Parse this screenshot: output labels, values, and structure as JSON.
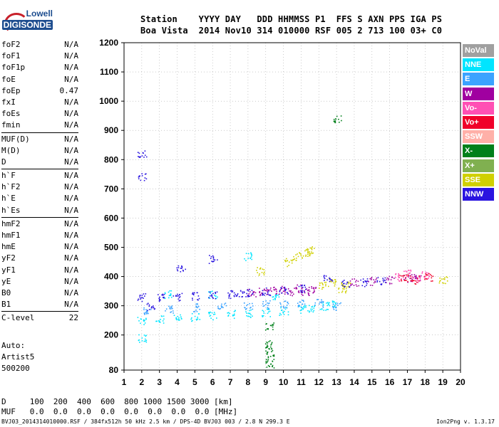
{
  "logo": {
    "line1": "Lowell",
    "line2": "DIGISONDE"
  },
  "header": {
    "row1": "Station    YYYY DAY   DDD HHMMSS P1  FFS S AXN PPS IGA PS",
    "row2": "Boa Vista  2014 Nov10 314 010000 RSF 005 2 713 100 03+ C0"
  },
  "params": [
    [
      {
        "label": "foF2",
        "value": "N/A"
      },
      {
        "label": "foF1",
        "value": "N/A"
      },
      {
        "label": "foF1p",
        "value": "N/A"
      },
      {
        "label": "foE",
        "value": "N/A"
      },
      {
        "label": "foEp",
        "value": "0.47"
      },
      {
        "label": "fxI",
        "value": "N/A"
      },
      {
        "label": "foEs",
        "value": "N/A"
      },
      {
        "label": "fmin",
        "value": "N/A"
      }
    ],
    [
      {
        "label": "MUF(D)",
        "value": "N/A"
      },
      {
        "label": "M(D)",
        "value": "N/A"
      },
      {
        "label": "D",
        "value": "N/A"
      }
    ],
    [
      {
        "label": "h`F",
        "value": "N/A"
      },
      {
        "label": "h`F2",
        "value": "N/A"
      },
      {
        "label": "h`E",
        "value": "N/A"
      },
      {
        "label": "h`Es",
        "value": "N/A"
      }
    ],
    [
      {
        "label": "hmF2",
        "value": "N/A"
      },
      {
        "label": "hmF1",
        "value": "N/A"
      },
      {
        "label": "hmE",
        "value": "N/A"
      },
      {
        "label": "yF2",
        "value": "N/A"
      },
      {
        "label": "yF1",
        "value": "N/A"
      },
      {
        "label": "yE",
        "value": "N/A"
      },
      {
        "label": "B0",
        "value": "N/A"
      },
      {
        "label": "B1",
        "value": "N/A"
      }
    ],
    [
      {
        "label": "C-level",
        "value": "22"
      }
    ]
  ],
  "notes": [
    "Auto:",
    "Artist5",
    "500200"
  ],
  "legend": [
    {
      "label": "NoVal",
      "color": "#a0a0a0"
    },
    {
      "label": "NNE",
      "color": "#00e5ff"
    },
    {
      "label": "E",
      "color": "#3ba3ff"
    },
    {
      "label": "W",
      "color": "#a000a0"
    },
    {
      "label": "Vo-",
      "color": "#ff50b4"
    },
    {
      "label": "Vo+",
      "color": "#f0002a"
    },
    {
      "label": "SSW",
      "color": "#ffb0a8"
    },
    {
      "label": "X-",
      "color": "#00801a"
    },
    {
      "label": "X+",
      "color": "#80b050"
    },
    {
      "label": "SSE",
      "color": "#d0d000"
    },
    {
      "label": "NNW",
      "color": "#2a14e0"
    }
  ],
  "chart_data": {
    "type": "scatter",
    "title": "",
    "xlabel": "",
    "ylabel": "",
    "xlim": [
      1,
      20
    ],
    "ylim": [
      80,
      1200
    ],
    "x_ticks": [
      1,
      2,
      3,
      4,
      5,
      6,
      7,
      8,
      9,
      10,
      11,
      12,
      13,
      14,
      15,
      16,
      17,
      18,
      19,
      20
    ],
    "y_ticks": [
      80,
      200,
      300,
      400,
      500,
      600,
      700,
      800,
      900,
      1000,
      1100,
      1200
    ],
    "grid": true,
    "series": [
      {
        "name": "NNE",
        "color": "#00e5ff",
        "points": [
          [
            2.0,
            250
          ],
          [
            3,
            255
          ],
          [
            4,
            260
          ],
          [
            5,
            263
          ],
          [
            6,
            267
          ],
          [
            7,
            272
          ],
          [
            8,
            275
          ],
          [
            9,
            278
          ],
          [
            10,
            283
          ],
          [
            11,
            288
          ],
          [
            11.5,
            292
          ],
          [
            12.3,
            300
          ],
          [
            12.7,
            310
          ],
          [
            2.0,
            190
          ],
          [
            3.5,
            340
          ],
          [
            6,
            340
          ],
          [
            8,
            470
          ],
          [
            9.5,
            330
          ]
        ]
      },
      {
        "name": "E",
        "color": "#3ba3ff",
        "points": [
          [
            2.3,
            285
          ],
          [
            3.5,
            290
          ],
          [
            5,
            295
          ],
          [
            6.5,
            298
          ],
          [
            8,
            302
          ],
          [
            9,
            305
          ],
          [
            10,
            308
          ],
          [
            11,
            310
          ],
          [
            12,
            310
          ],
          [
            13,
            300
          ]
        ]
      },
      {
        "name": "W",
        "color": "#a000a0",
        "points": [
          [
            8.2,
            345
          ],
          [
            8.8,
            350
          ],
          [
            9.3,
            355
          ],
          [
            9.8,
            355
          ],
          [
            10.3,
            350
          ],
          [
            10.8,
            360
          ],
          [
            11.2,
            350
          ],
          [
            11.6,
            355
          ],
          [
            14,
            380
          ],
          [
            15,
            385
          ],
          [
            16,
            390
          ],
          [
            17,
            395
          ],
          [
            17.5,
            400
          ]
        ]
      },
      {
        "name": "Vo-",
        "color": "#ff50b4",
        "points": [
          [
            16.5,
            400
          ],
          [
            17,
            410
          ],
          [
            17.5,
            395
          ],
          [
            18,
            405
          ]
        ]
      },
      {
        "name": "Vo+",
        "color": "#f0002a",
        "points": [
          [
            16.8,
            395
          ],
          [
            17.4,
            390
          ],
          [
            18.2,
            400
          ]
        ]
      },
      {
        "name": "X-",
        "color": "#00801a",
        "points": [
          [
            9.2,
            100
          ],
          [
            9.2,
            120
          ],
          [
            9.2,
            150
          ],
          [
            9.2,
            170
          ],
          [
            9.2,
            230
          ],
          [
            13,
            940
          ]
        ]
      },
      {
        "name": "SSE",
        "color": "#d0d000",
        "points": [
          [
            10.3,
            450
          ],
          [
            10.8,
            470
          ],
          [
            11.3,
            480
          ],
          [
            11.5,
            490
          ],
          [
            12.2,
            370
          ],
          [
            12.7,
            380
          ],
          [
            13.3,
            360
          ],
          [
            13.5,
            370
          ],
          [
            19,
            390
          ],
          [
            8.7,
            420
          ]
        ]
      },
      {
        "name": "NNW",
        "color": "#2a14e0",
        "points": [
          [
            2.0,
            330
          ],
          [
            3,
            330
          ],
          [
            4,
            332
          ],
          [
            5,
            335
          ],
          [
            6,
            338
          ],
          [
            7,
            340
          ],
          [
            7.5,
            345
          ],
          [
            8,
            345
          ],
          [
            9,
            350
          ],
          [
            10,
            355
          ],
          [
            11,
            360
          ],
          [
            2.0,
            740
          ],
          [
            2.0,
            820
          ],
          [
            2.5,
            300
          ],
          [
            4.2,
            430
          ],
          [
            6,
            460
          ],
          [
            12.5,
            395
          ],
          [
            13.5,
            375
          ],
          [
            14.5,
            380
          ],
          [
            15.5,
            385
          ]
        ]
      }
    ]
  },
  "bottom_table": {
    "row1": "D     100  200  400  600  800 1000 1500 3000 [km]",
    "row2": "MUF   0.0  0.0  0.0  0.0  0.0  0.0  0.0  0.0 [MHz]"
  },
  "footer": "BVJ03_2014314010000.RSF / 384fx512h 50 kHz 2.5 km / DPS-4D BVJ03 003 / 2.8 N 299.3 E",
  "version": "Ion2Png v. 1.3.17"
}
